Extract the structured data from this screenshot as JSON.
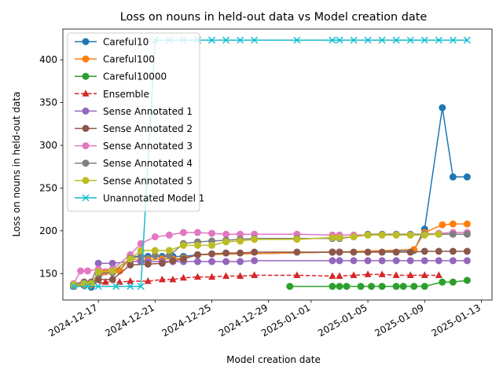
{
  "chart_data": {
    "type": "line",
    "title": "Loss on nouns in held-out data vs Model creation date",
    "xlabel": "Model creation date",
    "ylabel": "Loss on nouns in held-out data",
    "xlim": [
      "2024-12-14T12:00",
      "2025-01-13T18:00"
    ],
    "ylim": [
      119,
      436
    ],
    "yticks": [
      150,
      200,
      250,
      300,
      350,
      400
    ],
    "xticks": [
      "2024-12-17",
      "2024-12-21",
      "2024-12-25",
      "2024-12-29",
      "2025-01-01",
      "2025-01-05",
      "2025-01-09",
      "2025-01-13"
    ],
    "legend_position": "upper-left",
    "grid": false,
    "series": [
      {
        "name": "Careful10",
        "color": "#1f77b4",
        "marker": "circle",
        "dash": "solid",
        "points": [
          [
            "2024-12-15T06:00",
            135
          ],
          [
            "2024-12-16T00:00",
            136
          ],
          [
            "2024-12-16T12:00",
            134
          ],
          [
            "2024-12-17T12:00",
            152
          ],
          [
            "2024-12-18T12:00",
            153
          ],
          [
            "2024-12-19T06:00",
            170
          ],
          [
            "2024-12-20T00:00",
            170
          ],
          [
            "2024-12-20T12:00",
            170
          ],
          [
            "2024-12-21T12:00",
            170
          ],
          [
            "2024-12-22T06:00",
            170
          ],
          [
            "2024-12-23T00:00",
            170
          ],
          [
            "2024-12-24T00:00",
            172
          ],
          [
            "2025-01-02T12:00",
            175
          ],
          [
            "2025-01-03T00:00",
            175
          ],
          [
            "2025-01-08T06:00",
            177
          ],
          [
            "2025-01-09T00:00",
            202
          ],
          [
            "2025-01-10T06:00",
            344
          ],
          [
            "2025-01-11T00:00",
            263
          ],
          [
            "2025-01-12T00:00",
            263
          ]
        ]
      },
      {
        "name": "Careful100",
        "color": "#ff7f0e",
        "marker": "circle",
        "dash": "solid",
        "points": [
          [
            "2024-12-15T06:00",
            135
          ],
          [
            "2024-12-16T00:00",
            137
          ],
          [
            "2024-12-16T12:00",
            137
          ],
          [
            "2024-12-17T12:00",
            152
          ],
          [
            "2024-12-18T12:00",
            153
          ],
          [
            "2024-12-19T06:00",
            168
          ],
          [
            "2024-12-20T00:00",
            165
          ],
          [
            "2024-12-20T12:00",
            166
          ],
          [
            "2024-12-21T12:00",
            167
          ],
          [
            "2024-12-22T06:00",
            167
          ],
          [
            "2024-12-23T00:00",
            168
          ],
          [
            "2024-12-24T00:00",
            172
          ],
          [
            "2025-01-02T12:00",
            175
          ],
          [
            "2025-01-08T06:00",
            178
          ],
          [
            "2025-01-09T00:00",
            198
          ],
          [
            "2025-01-10T06:00",
            207
          ],
          [
            "2025-01-11T00:00",
            208
          ],
          [
            "2025-01-12T00:00",
            208
          ]
        ]
      },
      {
        "name": "Careful10000",
        "color": "#2ca02c",
        "marker": "circle",
        "dash": "solid",
        "points": [
          [
            "2024-12-30T12:00",
            135
          ],
          [
            "2025-01-02T12:00",
            135
          ],
          [
            "2025-01-03T00:00",
            135
          ],
          [
            "2025-01-03T12:00",
            135
          ],
          [
            "2025-01-04T12:00",
            135
          ],
          [
            "2025-01-05T06:00",
            135
          ],
          [
            "2025-01-06T00:00",
            135
          ],
          [
            "2025-01-07T00:00",
            135
          ],
          [
            "2025-01-07T12:00",
            135
          ],
          [
            "2025-01-08T06:00",
            135
          ],
          [
            "2025-01-09T00:00",
            135
          ],
          [
            "2025-01-10T06:00",
            140
          ],
          [
            "2025-01-11T00:00",
            140
          ],
          [
            "2025-01-12T00:00",
            142
          ]
        ]
      },
      {
        "name": "Ensemble",
        "color": "#d62728",
        "marker": "triangle",
        "dash": "dashed",
        "points": [
          [
            "2024-12-15T06:00",
            137
          ],
          [
            "2024-12-16T00:00",
            137
          ],
          [
            "2024-12-16T12:00",
            137
          ],
          [
            "2024-12-17T12:00",
            140
          ],
          [
            "2024-12-18T12:00",
            140
          ],
          [
            "2024-12-19T06:00",
            141
          ],
          [
            "2024-12-20T12:00",
            141
          ],
          [
            "2024-12-21T12:00",
            143
          ],
          [
            "2024-12-22T06:00",
            143
          ],
          [
            "2024-12-23T00:00",
            145
          ],
          [
            "2024-12-24T00:00",
            146
          ],
          [
            "2024-12-25T00:00",
            146
          ],
          [
            "2024-12-26T00:00",
            147
          ],
          [
            "2024-12-27T00:00",
            147
          ],
          [
            "2024-12-28T00:00",
            148
          ],
          [
            "2024-12-31T00:00",
            148
          ],
          [
            "2025-01-02T12:00",
            147
          ],
          [
            "2025-01-03T00:00",
            147
          ],
          [
            "2025-01-04T00:00",
            148
          ],
          [
            "2025-01-05T00:00",
            149
          ],
          [
            "2025-01-06T00:00",
            149
          ],
          [
            "2025-01-07T00:00",
            148
          ],
          [
            "2025-01-08T00:00",
            148
          ],
          [
            "2025-01-09T00:00",
            148
          ],
          [
            "2025-01-10T00:00",
            148
          ]
        ]
      },
      {
        "name": "Sense Annotated 1",
        "color": "#9467bd",
        "marker": "circle",
        "dash": "solid",
        "points": [
          [
            "2024-12-15T06:00",
            135
          ],
          [
            "2024-12-16T00:00",
            140
          ],
          [
            "2024-12-16T12:00",
            140
          ],
          [
            "2024-12-17T00:00",
            162
          ],
          [
            "2024-12-18T00:00",
            162
          ],
          [
            "2024-12-19T06:00",
            164
          ],
          [
            "2024-12-20T00:00",
            164
          ],
          [
            "2024-12-20T12:00",
            164
          ],
          [
            "2024-12-21T12:00",
            164
          ],
          [
            "2024-12-22T06:00",
            164
          ],
          [
            "2024-12-23T00:00",
            164
          ],
          [
            "2024-12-24T00:00",
            164
          ],
          [
            "2024-12-25T00:00",
            164
          ],
          [
            "2024-12-26T00:00",
            164
          ],
          [
            "2024-12-27T00:00",
            164
          ],
          [
            "2024-12-28T00:00",
            165
          ],
          [
            "2025-01-02T12:00",
            165
          ],
          [
            "2025-01-03T00:00",
            165
          ],
          [
            "2025-01-04T00:00",
            165
          ],
          [
            "2025-01-05T00:00",
            165
          ],
          [
            "2025-01-06T00:00",
            165
          ],
          [
            "2025-01-07T00:00",
            165
          ],
          [
            "2025-01-08T00:00",
            165
          ],
          [
            "2025-01-09T00:00",
            165
          ],
          [
            "2025-01-10T00:00",
            165
          ],
          [
            "2025-01-11T00:00",
            165
          ],
          [
            "2025-01-12T00:00",
            165
          ]
        ]
      },
      {
        "name": "Sense Annotated 2",
        "color": "#8c564b",
        "marker": "circle",
        "dash": "solid",
        "points": [
          [
            "2024-12-15T06:00",
            138
          ],
          [
            "2024-12-16T00:00",
            140
          ],
          [
            "2024-12-16T12:00",
            140
          ],
          [
            "2024-12-17T00:00",
            143
          ],
          [
            "2024-12-18T00:00",
            143
          ],
          [
            "2024-12-19T06:00",
            160
          ],
          [
            "2024-12-20T12:00",
            161
          ],
          [
            "2024-12-21T12:00",
            162
          ],
          [
            "2024-12-22T06:00",
            165
          ],
          [
            "2024-12-23T00:00",
            167
          ],
          [
            "2024-12-24T00:00",
            172
          ],
          [
            "2024-12-25T00:00",
            173
          ],
          [
            "2024-12-26T00:00",
            174
          ],
          [
            "2024-12-27T00:00",
            174
          ],
          [
            "2024-12-28T00:00",
            175
          ],
          [
            "2024-12-31T00:00",
            175
          ],
          [
            "2025-01-02T12:00",
            175
          ],
          [
            "2025-01-03T00:00",
            175
          ],
          [
            "2025-01-04T00:00",
            175
          ],
          [
            "2025-01-05T00:00",
            175
          ],
          [
            "2025-01-06T00:00",
            175
          ],
          [
            "2025-01-07T00:00",
            175
          ],
          [
            "2025-01-08T00:00",
            175
          ],
          [
            "2025-01-09T00:00",
            176
          ],
          [
            "2025-01-10T00:00",
            176
          ],
          [
            "2025-01-11T00:00",
            176
          ],
          [
            "2025-01-12T00:00",
            176
          ]
        ]
      },
      {
        "name": "Sense Annotated 3",
        "color": "#e377c2",
        "marker": "circle",
        "dash": "solid",
        "points": [
          [
            "2024-12-15T06:00",
            138
          ],
          [
            "2024-12-15T18:00",
            153
          ],
          [
            "2024-12-16T06:00",
            153
          ],
          [
            "2024-12-17T00:00",
            155
          ],
          [
            "2024-12-18T00:00",
            155
          ],
          [
            "2024-12-19T06:00",
            172
          ],
          [
            "2024-12-20T00:00",
            185
          ],
          [
            "2024-12-21T00:00",
            193
          ],
          [
            "2024-12-22T00:00",
            195
          ],
          [
            "2024-12-23T00:00",
            198
          ],
          [
            "2024-12-24T00:00",
            198
          ],
          [
            "2024-12-25T00:00",
            197
          ],
          [
            "2024-12-26T00:00",
            196
          ],
          [
            "2024-12-27T00:00",
            196
          ],
          [
            "2024-12-28T00:00",
            196
          ],
          [
            "2024-12-31T00:00",
            196
          ],
          [
            "2025-01-02T12:00",
            195
          ],
          [
            "2025-01-03T00:00",
            195
          ],
          [
            "2025-01-04T00:00",
            195
          ],
          [
            "2025-01-05T00:00",
            195
          ],
          [
            "2025-01-06T00:00",
            195
          ],
          [
            "2025-01-07T00:00",
            195
          ],
          [
            "2025-01-08T00:00",
            195
          ],
          [
            "2025-01-09T00:00",
            196
          ],
          [
            "2025-01-10T00:00",
            197
          ],
          [
            "2025-01-11T00:00",
            198
          ],
          [
            "2025-01-12T00:00",
            198
          ]
        ]
      },
      {
        "name": "Sense Annotated 4",
        "color": "#7f7f7f",
        "marker": "circle",
        "dash": "solid",
        "points": [
          [
            "2024-12-15T06:00",
            136
          ],
          [
            "2024-12-16T00:00",
            139
          ],
          [
            "2024-12-16T12:00",
            139
          ],
          [
            "2024-12-17T00:00",
            150
          ],
          [
            "2024-12-18T00:00",
            151
          ],
          [
            "2024-12-19T06:00",
            168
          ],
          [
            "2024-12-20T00:00",
            170
          ],
          [
            "2024-12-21T00:00",
            171
          ],
          [
            "2024-12-22T00:00",
            171
          ],
          [
            "2024-12-23T00:00",
            185
          ],
          [
            "2024-12-24T00:00",
            187
          ],
          [
            "2024-12-25T00:00",
            188
          ],
          [
            "2024-12-26T00:00",
            189
          ],
          [
            "2024-12-27T00:00",
            190
          ],
          [
            "2024-12-28T00:00",
            191
          ],
          [
            "2024-12-31T00:00",
            191
          ],
          [
            "2025-01-02T12:00",
            191
          ],
          [
            "2025-01-03T00:00",
            191
          ],
          [
            "2025-01-04T00:00",
            193
          ],
          [
            "2025-01-05T00:00",
            196
          ],
          [
            "2025-01-06T00:00",
            196
          ],
          [
            "2025-01-07T00:00",
            196
          ],
          [
            "2025-01-08T00:00",
            196
          ],
          [
            "2025-01-09T00:00",
            196
          ],
          [
            "2025-01-10T00:00",
            196
          ],
          [
            "2025-01-11T00:00",
            196
          ],
          [
            "2025-01-12T00:00",
            196
          ]
        ]
      },
      {
        "name": "Sense Annotated 5",
        "color": "#bcbd22",
        "marker": "circle",
        "dash": "solid",
        "points": [
          [
            "2024-12-15T06:00",
            137
          ],
          [
            "2024-12-16T00:00",
            138
          ],
          [
            "2024-12-16T12:00",
            138
          ],
          [
            "2024-12-17T00:00",
            152
          ],
          [
            "2024-12-18T00:00",
            153
          ],
          [
            "2024-12-19T06:00",
            167
          ],
          [
            "2024-12-20T00:00",
            177
          ],
          [
            "2024-12-21T00:00",
            177
          ],
          [
            "2024-12-22T00:00",
            177
          ],
          [
            "2024-12-23T00:00",
            183
          ],
          [
            "2024-12-24T00:00",
            183
          ],
          [
            "2024-12-25T00:00",
            183
          ],
          [
            "2024-12-26T00:00",
            187
          ],
          [
            "2024-12-27T00:00",
            188
          ],
          [
            "2024-12-28T00:00",
            190
          ],
          [
            "2024-12-31T00:00",
            190
          ],
          [
            "2025-01-02T12:00",
            192
          ],
          [
            "2025-01-03T00:00",
            192
          ],
          [
            "2025-01-04T00:00",
            193
          ],
          [
            "2025-01-05T00:00",
            195
          ],
          [
            "2025-01-06T00:00",
            195
          ],
          [
            "2025-01-07T00:00",
            195
          ],
          [
            "2025-01-08T00:00",
            195
          ],
          [
            "2025-01-09T00:00",
            195
          ],
          [
            "2025-01-10T00:00",
            196
          ]
        ]
      },
      {
        "name": "Unannotated Model 1",
        "color": "#17becf",
        "marker": "x",
        "dash": "solid",
        "points": [
          [
            "2024-12-15T06:00",
            135
          ],
          [
            "2024-12-16T06:00",
            135
          ],
          [
            "2024-12-17T00:00",
            135
          ],
          [
            "2024-12-18T06:00",
            135
          ],
          [
            "2024-12-19T06:00",
            135
          ],
          [
            "2024-12-20T00:00",
            135
          ],
          [
            "2024-12-21T00:00",
            423
          ],
          [
            "2024-12-22T00:00",
            423
          ],
          [
            "2024-12-23T00:00",
            423
          ],
          [
            "2024-12-24T00:00",
            423
          ],
          [
            "2024-12-25T00:00",
            423
          ],
          [
            "2024-12-26T00:00",
            423
          ],
          [
            "2024-12-27T00:00",
            423
          ],
          [
            "2024-12-28T00:00",
            423
          ],
          [
            "2024-12-31T00:00",
            423
          ],
          [
            "2025-01-02T12:00",
            423
          ],
          [
            "2025-01-03T00:00",
            423
          ],
          [
            "2025-01-04T00:00",
            423
          ],
          [
            "2025-01-05T00:00",
            423
          ],
          [
            "2025-01-06T00:00",
            423
          ],
          [
            "2025-01-07T00:00",
            423
          ],
          [
            "2025-01-08T00:00",
            423
          ],
          [
            "2025-01-09T00:00",
            423
          ],
          [
            "2025-01-10T00:00",
            423
          ],
          [
            "2025-01-11T00:00",
            423
          ],
          [
            "2025-01-12T00:00",
            423
          ]
        ]
      }
    ]
  }
}
